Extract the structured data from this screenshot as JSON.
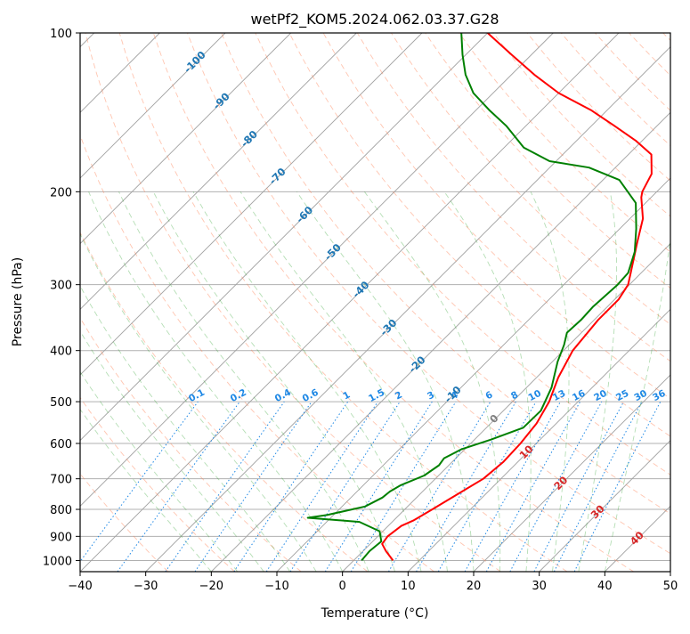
{
  "chart_data": {
    "type": "line",
    "title": "wetPf2_KOM5.2024.062.03.37.G28",
    "xlabel": "Temperature (°C)",
    "ylabel": "Pressure (hPa)",
    "xlim": [
      -40,
      50
    ],
    "ylim": [
      1050,
      100
    ],
    "y_scale": "log",
    "grid": true,
    "x_ticks": [
      -40,
      -30,
      -20,
      -10,
      0,
      10,
      20,
      30,
      40,
      50
    ],
    "y_ticks": [
      1000,
      900,
      800,
      700,
      600,
      500,
      400,
      300,
      200,
      100
    ],
    "skew": 45,
    "colors": {
      "temperature": "#ff0000",
      "dewpoint": "#008000",
      "isotherm": "#a0a0a0",
      "dry_adiabat": "#ff7f50",
      "moist_adiabat": "#2ca02c",
      "mixing_ratio": "#1e88e5",
      "isotherm_label": "#1f77b4",
      "isotherm_label_warm": "#d62728",
      "zero_label": "#7f7f7f"
    },
    "series": [
      {
        "name": "Temperature",
        "points": [
          [
            6.0,
            1000
          ],
          [
            3.5,
            960
          ],
          [
            1.8,
            930
          ],
          [
            1.5,
            900
          ],
          [
            2.0,
            860
          ],
          [
            3.0,
            840
          ],
          [
            4.2,
            800
          ],
          [
            6.0,
            740
          ],
          [
            7.3,
            700
          ],
          [
            7.8,
            650
          ],
          [
            7.6,
            600
          ],
          [
            7.0,
            550
          ],
          [
            5.6,
            500
          ],
          [
            3.3,
            450
          ],
          [
            1.4,
            400
          ],
          [
            0.6,
            350
          ],
          [
            0.6,
            320
          ],
          [
            -0.2,
            300
          ],
          [
            -1.6,
            285
          ],
          [
            -5.2,
            250
          ],
          [
            -8.0,
            225
          ],
          [
            -11.5,
            205
          ],
          [
            -12.2,
            200
          ],
          [
            -13.5,
            185
          ],
          [
            -16.5,
            170
          ],
          [
            -21.0,
            160
          ],
          [
            -26.5,
            150
          ],
          [
            -32.5,
            140
          ],
          [
            -40.0,
            130
          ],
          [
            -46.5,
            120
          ],
          [
            -53.0,
            110
          ],
          [
            -60.0,
            100
          ]
        ]
      },
      {
        "name": "Dewpoint",
        "points": [
          [
            1.2,
            1000
          ],
          [
            1.0,
            960
          ],
          [
            1.3,
            920
          ],
          [
            -0.5,
            880
          ],
          [
            -5.0,
            845
          ],
          [
            -13.5,
            830
          ],
          [
            -11.0,
            820
          ],
          [
            -6.5,
            790
          ],
          [
            -5.2,
            760
          ],
          [
            -5.0,
            740
          ],
          [
            -4.3,
            720
          ],
          [
            -2.2,
            690
          ],
          [
            -1.5,
            660
          ],
          [
            -1.8,
            640
          ],
          [
            -0.5,
            615
          ],
          [
            2.5,
            590
          ],
          [
            5.6,
            560
          ],
          [
            5.7,
            520
          ],
          [
            3.8,
            470
          ],
          [
            0.8,
            420
          ],
          [
            -0.8,
            390
          ],
          [
            -2.2,
            370
          ],
          [
            -2.0,
            350
          ],
          [
            -2.2,
            330
          ],
          [
            -1.8,
            300
          ],
          [
            -2.0,
            285
          ],
          [
            -4.2,
            260
          ],
          [
            -7.5,
            235
          ],
          [
            -11.5,
            210
          ],
          [
            -17.5,
            190
          ],
          [
            -24.0,
            180
          ],
          [
            -31.0,
            175
          ],
          [
            -37.0,
            165
          ],
          [
            -43.0,
            150
          ],
          [
            -48.0,
            140
          ],
          [
            -53.0,
            130
          ],
          [
            -57.0,
            120
          ],
          [
            -60.5,
            110
          ],
          [
            -64.0,
            100
          ]
        ]
      }
    ],
    "isotherm_labels": [
      {
        "t": -100,
        "p": 113,
        "text": "-100"
      },
      {
        "t": -90,
        "p": 134,
        "text": "-90"
      },
      {
        "t": -80,
        "p": 158,
        "text": "-80"
      },
      {
        "t": -70,
        "p": 186,
        "text": "-70"
      },
      {
        "t": -60,
        "p": 220,
        "text": "-60"
      },
      {
        "t": -50,
        "p": 259,
        "text": "-50"
      },
      {
        "t": -40,
        "p": 305,
        "text": "-40"
      },
      {
        "t": -30,
        "p": 360,
        "text": "-30"
      },
      {
        "t": -20,
        "p": 423,
        "text": "-20"
      },
      {
        "t": -10,
        "p": 482,
        "text": "-10"
      },
      {
        "t": 0,
        "p": 536,
        "text": "0"
      },
      {
        "t": 10,
        "p": 620,
        "text": "10"
      },
      {
        "t": 20,
        "p": 710,
        "text": "20"
      },
      {
        "t": 30,
        "p": 805,
        "text": "30"
      },
      {
        "t": 40,
        "p": 903,
        "text": "40"
      }
    ],
    "mixing_ratio_labels": [
      "0.1",
      "0.2",
      "0.4",
      "0.6",
      "1",
      "1.5",
      "2",
      "3",
      "4",
      "6",
      "8",
      "10",
      "13",
      "16",
      "20",
      "25",
      "30",
      "36"
    ],
    "mixing_ratio_label_pressure": 500
  }
}
